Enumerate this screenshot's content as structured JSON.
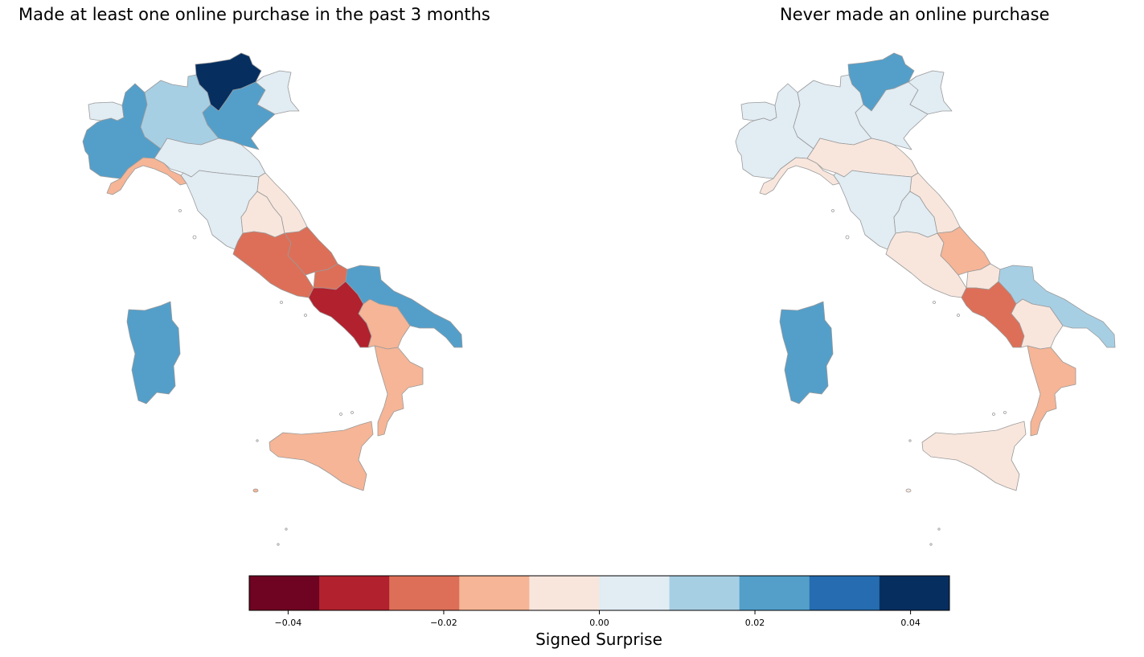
{
  "panels": [
    {
      "title": "Made at least one online purchase in the past 3 months",
      "regions": {
        "valle-daosta": 0.002,
        "piemonte": 0.022,
        "liguria": -0.016,
        "lombardia": 0.012,
        "trentino-alto-adige": 0.045,
        "veneto": 0.022,
        "friuli-venezia-giulia": 0.004,
        "emilia-romagna": 0.004,
        "toscana": 0.004,
        "umbria": -0.006,
        "marche": -0.006,
        "lazio": -0.022,
        "abruzzo": -0.022,
        "molise": -0.022,
        "campania": -0.031,
        "puglia": 0.022,
        "basilicata": -0.016,
        "calabria": -0.016,
        "sicilia": -0.016,
        "sardegna": 0.022
      }
    },
    {
      "title": "Never made an online purchase",
      "regions": {
        "valle-daosta": 0.004,
        "piemonte": 0.004,
        "liguria": -0.006,
        "lombardia": 0.004,
        "trentino-alto-adige": 0.022,
        "veneto": 0.004,
        "friuli-venezia-giulia": 0.004,
        "emilia-romagna": -0.006,
        "toscana": 0.004,
        "umbria": 0.004,
        "marche": -0.006,
        "lazio": -0.006,
        "abruzzo": -0.016,
        "molise": -0.006,
        "campania": -0.022,
        "puglia": 0.012,
        "basilicata": -0.006,
        "calabria": -0.016,
        "sicilia": -0.006,
        "sardegna": 0.022
      }
    }
  ],
  "colorbar": {
    "label": "Signed Surprise",
    "vmin": -0.045,
    "vmax": 0.045,
    "ticks": [
      {
        "value": -0.04,
        "label": "−0.04"
      },
      {
        "value": -0.02,
        "label": "−0.02"
      },
      {
        "value": 0.0,
        "label": "0.00"
      },
      {
        "value": 0.02,
        "label": "0.02"
      },
      {
        "value": 0.04,
        "label": "0.04"
      }
    ],
    "colors": [
      "#67001f",
      "#b2182b",
      "#d6604d",
      "#f4a582",
      "#fddbc7",
      "#d1e5f0",
      "#92c5de",
      "#4393c3",
      "#2166ac",
      "#053061"
    ],
    "bin_colors": [
      "#6f0322",
      "#b2212e",
      "#dd6f58",
      "#f5b596",
      "#f8e6dd",
      "#e1ecf3",
      "#a7cfe4",
      "#539fca",
      "#256cb0",
      "#062f60"
    ]
  }
}
